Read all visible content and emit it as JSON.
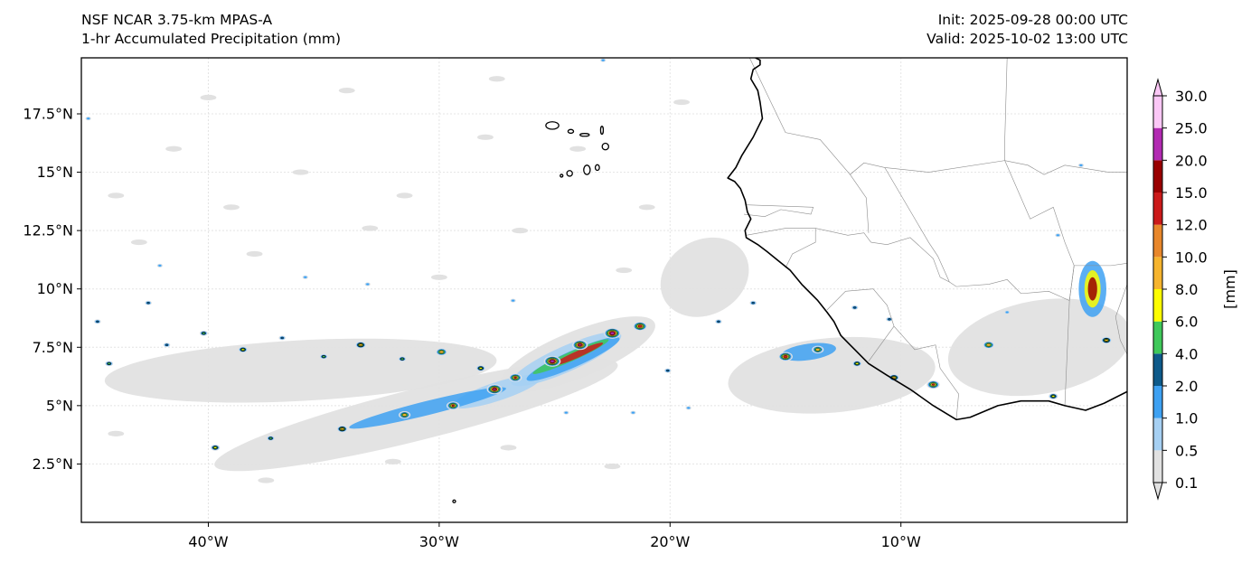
{
  "header": {
    "model": "NSF NCAR 3.75-km MPAS-A",
    "field": "1-hr Accumulated Precipitation (mm)",
    "init": "Init: 2025-09-28 00:00 UTC",
    "valid": "Valid: 2025-10-02 13:00 UTC"
  },
  "axes": {
    "lon_range": [
      -45.5,
      -0.2
    ],
    "lat_range": [
      0,
      19.9
    ],
    "lat_ticks": [
      {
        "value": 2.5,
        "label": "2.5°N"
      },
      {
        "value": 5,
        "label": "5°N"
      },
      {
        "value": 7.5,
        "label": "7.5°N"
      },
      {
        "value": 10,
        "label": "10°N"
      },
      {
        "value": 12.5,
        "label": "12.5°N"
      },
      {
        "value": 15,
        "label": "15°N"
      },
      {
        "value": 17.5,
        "label": "17.5°N"
      }
    ],
    "lon_ticks": [
      {
        "value": -40,
        "label": "40°W"
      },
      {
        "value": -30,
        "label": "30°W"
      },
      {
        "value": -20,
        "label": "20°W"
      },
      {
        "value": -10,
        "label": "10°W"
      }
    ]
  },
  "colorbar": {
    "unit_label": "[mm]",
    "levels": [
      {
        "label": "0.1",
        "color": "#e1e1e1"
      },
      {
        "label": "0.5",
        "color": "#a6d0f3"
      },
      {
        "label": "1.0",
        "color": "#3ea1f2"
      },
      {
        "label": "2.0",
        "color": "#0e5a8a"
      },
      {
        "label": "4.0",
        "color": "#3fc85a"
      },
      {
        "label": "6.0",
        "color": "#fdfd00"
      },
      {
        "label": "8.0",
        "color": "#f6b42e"
      },
      {
        "label": "10.0",
        "color": "#e8872b"
      },
      {
        "label": "12.0",
        "color": "#cb1a1a"
      },
      {
        "label": "15.0",
        "color": "#990000"
      },
      {
        "label": "20.0",
        "color": "#b22ab2"
      },
      {
        "label": "25.0",
        "color": "#fbc7f6"
      },
      {
        "label": "30.0",
        "color": ""
      }
    ]
  },
  "precip_bands": [
    {
      "lon": -24.0,
      "lat": 7.2,
      "rlon": 3.6,
      "rlat": 1.0,
      "rot": -22,
      "level": 0
    },
    {
      "lon": -36.0,
      "lat": 6.5,
      "rlon": 8.5,
      "rlat": 1.3,
      "rot": -3,
      "level": 0
    },
    {
      "lon": -31.0,
      "lat": 4.6,
      "rlon": 9.0,
      "rlat": 1.1,
      "rot": -14,
      "level": 0
    },
    {
      "lon": -13.0,
      "lat": 6.3,
      "rlon": 4.5,
      "rlat": 1.6,
      "rot": -5,
      "level": 0
    },
    {
      "lon": -18.5,
      "lat": 10.5,
      "rlon": 2.0,
      "rlat": 1.6,
      "rot": -30,
      "level": 0
    },
    {
      "lon": -4.0,
      "lat": 7.5,
      "rlon": 4.0,
      "rlat": 2.0,
      "rot": -10,
      "level": 0
    },
    {
      "lon": -24.5,
      "lat": 7.0,
      "rlon": 2.6,
      "rlat": 0.55,
      "rot": -24,
      "level": 1
    },
    {
      "lon": -27.5,
      "lat": 5.6,
      "rlon": 2.0,
      "rlat": 0.4,
      "rot": -18,
      "level": 1
    },
    {
      "lon": -24.2,
      "lat": 7.0,
      "rlon": 2.2,
      "rlat": 0.35,
      "rot": -24,
      "level": 2
    },
    {
      "lon": -30.5,
      "lat": 4.9,
      "rlon": 3.5,
      "rlat": 0.3,
      "rot": -14,
      "level": 2
    },
    {
      "lon": -14.0,
      "lat": 7.3,
      "rlon": 1.2,
      "rlat": 0.35,
      "rot": -8,
      "level": 2
    },
    {
      "lon": -1.7,
      "lat": 10.0,
      "rlon": 0.6,
      "rlat": 1.2,
      "rot": 0,
      "level": 2
    },
    {
      "lon": -24.3,
      "lat": 7.1,
      "rlon": 1.8,
      "rlat": 0.2,
      "rot": -24,
      "level": 4
    },
    {
      "lon": -24.0,
      "lat": 7.2,
      "rlon": 1.2,
      "rlat": 0.14,
      "rot": -24,
      "level": 8
    },
    {
      "lon": -1.7,
      "lat": 10.0,
      "rlon": 0.35,
      "rlat": 0.8,
      "rot": 0,
      "level": 5
    },
    {
      "lon": -1.7,
      "lat": 10.0,
      "rlon": 0.2,
      "rlat": 0.5,
      "rot": 0,
      "level": 9
    }
  ],
  "precip_cells": [
    {
      "lon": -41.8,
      "lat": 7.6,
      "level": 3
    },
    {
      "lon": -40.2,
      "lat": 8.1,
      "level": 4
    },
    {
      "lon": -38.5,
      "lat": 7.4,
      "level": 5
    },
    {
      "lon": -36.8,
      "lat": 7.9,
      "level": 3
    },
    {
      "lon": -35.0,
      "lat": 7.1,
      "level": 4
    },
    {
      "lon": -33.4,
      "lat": 7.6,
      "level": 6
    },
    {
      "lon": -31.6,
      "lat": 7.0,
      "level": 4
    },
    {
      "lon": -29.9,
      "lat": 7.3,
      "level": 7
    },
    {
      "lon": -28.2,
      "lat": 6.6,
      "level": 5
    },
    {
      "lon": -26.7,
      "lat": 6.2,
      "level": 8
    },
    {
      "lon": -25.1,
      "lat": 6.9,
      "level": 11
    },
    {
      "lon": -23.9,
      "lat": 7.6,
      "level": 10
    },
    {
      "lon": -22.5,
      "lat": 8.1,
      "level": 11
    },
    {
      "lon": -21.3,
      "lat": 8.4,
      "level": 9
    },
    {
      "lon": -39.7,
      "lat": 3.2,
      "level": 5
    },
    {
      "lon": -37.3,
      "lat": 3.6,
      "level": 4
    },
    {
      "lon": -34.2,
      "lat": 4.0,
      "level": 6
    },
    {
      "lon": -31.5,
      "lat": 4.6,
      "level": 7
    },
    {
      "lon": -29.4,
      "lat": 5.0,
      "level": 8
    },
    {
      "lon": -27.6,
      "lat": 5.7,
      "level": 10
    },
    {
      "lon": -15.0,
      "lat": 7.1,
      "level": 9
    },
    {
      "lon": -13.6,
      "lat": 7.4,
      "level": 7
    },
    {
      "lon": -11.9,
      "lat": 6.8,
      "level": 5
    },
    {
      "lon": -10.3,
      "lat": 6.2,
      "level": 6
    },
    {
      "lon": -8.6,
      "lat": 5.9,
      "level": 8
    },
    {
      "lon": -6.2,
      "lat": 7.6,
      "level": 7
    },
    {
      "lon": -3.4,
      "lat": 5.4,
      "level": 5
    },
    {
      "lon": -1.1,
      "lat": 7.8,
      "level": 6
    },
    {
      "lon": -17.9,
      "lat": 8.6,
      "level": 3
    },
    {
      "lon": -16.4,
      "lat": 9.4,
      "level": 3
    },
    {
      "lon": -44.8,
      "lat": 8.6,
      "level": 3
    },
    {
      "lon": -44.3,
      "lat": 6.8,
      "level": 4
    },
    {
      "lon": -42.6,
      "lat": 9.4,
      "level": 3
    },
    {
      "lon": -42.1,
      "lat": 11.0,
      "level": 2
    },
    {
      "lon": -35.8,
      "lat": 10.5,
      "level": 2
    },
    {
      "lon": -33.1,
      "lat": 10.2,
      "level": 2
    },
    {
      "lon": -26.8,
      "lat": 9.5,
      "level": 2
    },
    {
      "lon": -20.1,
      "lat": 6.5,
      "level": 3
    },
    {
      "lon": -2.2,
      "lat": 15.3,
      "level": 2
    },
    {
      "lon": -3.2,
      "lat": 12.3,
      "level": 2
    },
    {
      "lon": -12.0,
      "lat": 9.2,
      "level": 3
    },
    {
      "lon": -10.5,
      "lat": 8.7,
      "level": 3
    },
    {
      "lon": -5.4,
      "lat": 9.0,
      "level": 2
    },
    {
      "lon": -22.9,
      "lat": 19.8,
      "level": 2
    },
    {
      "lon": -45.2,
      "lat": 17.3,
      "level": 2
    },
    {
      "lon": -24.5,
      "lat": 4.7,
      "level": 2
    },
    {
      "lon": -21.6,
      "lat": 4.7,
      "level": 2
    },
    {
      "lon": -19.2,
      "lat": 4.9,
      "level": 2
    }
  ],
  "light_drizzle": [
    {
      "lon": -44.0,
      "lat": 14.0
    },
    {
      "lon": -41.5,
      "lat": 16.0
    },
    {
      "lon": -39.0,
      "lat": 13.5
    },
    {
      "lon": -36.0,
      "lat": 15.0
    },
    {
      "lon": -34.0,
      "lat": 18.5
    },
    {
      "lon": -31.5,
      "lat": 14.0
    },
    {
      "lon": -28.0,
      "lat": 16.5
    },
    {
      "lon": -26.5,
      "lat": 12.5
    },
    {
      "lon": -24.0,
      "lat": 16.0
    },
    {
      "lon": -21.0,
      "lat": 13.5
    },
    {
      "lon": -19.5,
      "lat": 18.0
    },
    {
      "lon": -38.0,
      "lat": 11.5
    },
    {
      "lon": -30.0,
      "lat": 10.5
    },
    {
      "lon": -22.0,
      "lat": 10.8
    },
    {
      "lon": -43.0,
      "lat": 12.0
    },
    {
      "lon": -33.0,
      "lat": 12.6
    },
    {
      "lon": -40.0,
      "lat": 18.2
    },
    {
      "lon": -27.5,
      "lat": 19.0
    },
    {
      "lon": -37.5,
      "lat": 1.8
    },
    {
      "lon": -32.0,
      "lat": 2.6
    },
    {
      "lon": -27.0,
      "lat": 3.2
    },
    {
      "lon": -22.5,
      "lat": 2.4
    },
    {
      "lon": -44.0,
      "lat": 3.8
    }
  ],
  "islands": [
    {
      "name": "Santo Antao",
      "lon": -25.1,
      "lat": 17.0,
      "rlon": 0.28,
      "rlat": 0.16
    },
    {
      "name": "Sao Vicente",
      "lon": -24.3,
      "lat": 16.75,
      "rlon": 0.12,
      "rlat": 0.08
    },
    {
      "name": "Sao Nicolau",
      "lon": -23.7,
      "lat": 16.6,
      "rlon": 0.2,
      "rlat": 0.06
    },
    {
      "name": "Sal",
      "lon": -22.95,
      "lat": 16.8,
      "rlon": 0.05,
      "rlat": 0.17
    },
    {
      "name": "Boa Vista",
      "lon": -22.8,
      "lat": 16.1,
      "rlon": 0.14,
      "rlat": 0.14
    },
    {
      "name": "Maio",
      "lon": -23.15,
      "lat": 15.2,
      "rlon": 0.09,
      "rlat": 0.12
    },
    {
      "name": "Santiago",
      "lon": -23.6,
      "lat": 15.1,
      "rlon": 0.14,
      "rlat": 0.2
    },
    {
      "name": "Fogo",
      "lon": -24.35,
      "lat": 14.95,
      "rlon": 0.12,
      "rlat": 0.12
    },
    {
      "name": "Brava",
      "lon": -24.7,
      "lat": 14.85,
      "rlon": 0.05,
      "rlat": 0.05
    },
    {
      "name": "St Peter and St Paul Rocks",
      "lon": -29.35,
      "lat": 0.9,
      "rlon": 0.05,
      "rlat": 0.05
    }
  ],
  "coastline": [
    [
      -16.3,
      19.9
    ],
    [
      -16.1,
      19.8
    ],
    [
      -16.1,
      19.6
    ],
    [
      -16.4,
      19.4
    ],
    [
      -16.5,
      19.0
    ],
    [
      -16.2,
      18.5
    ],
    [
      -16.1,
      18.0
    ],
    [
      -16.0,
      17.3
    ],
    [
      -16.4,
      16.5
    ],
    [
      -16.9,
      15.7
    ],
    [
      -17.15,
      15.2
    ],
    [
      -17.5,
      14.75
    ],
    [
      -17.2,
      14.6
    ],
    [
      -16.95,
      14.3
    ],
    [
      -16.75,
      13.8
    ],
    [
      -16.65,
      13.3
    ],
    [
      -16.5,
      13.0
    ],
    [
      -16.75,
      12.5
    ],
    [
      -16.7,
      12.2
    ],
    [
      -16.2,
      11.9
    ],
    [
      -15.8,
      11.6
    ],
    [
      -15.3,
      11.2
    ],
    [
      -14.8,
      10.8
    ],
    [
      -14.3,
      10.2
    ],
    [
      -13.6,
      9.5
    ],
    [
      -13.2,
      9.0
    ],
    [
      -12.9,
      8.6
    ],
    [
      -12.6,
      8.0
    ],
    [
      -12.0,
      7.4
    ],
    [
      -11.4,
      6.8
    ],
    [
      -10.6,
      6.3
    ],
    [
      -9.6,
      5.7
    ],
    [
      -8.6,
      5.0
    ],
    [
      -7.6,
      4.4
    ],
    [
      -7.0,
      4.5
    ],
    [
      -5.8,
      5.0
    ],
    [
      -4.8,
      5.2
    ],
    [
      -3.6,
      5.2
    ],
    [
      -2.9,
      5.0
    ],
    [
      -2.0,
      4.8
    ],
    [
      -1.2,
      5.1
    ],
    [
      -0.2,
      5.6
    ]
  ],
  "borders": [
    [
      [
        -17.0,
        21.0
      ],
      [
        -16.7,
        20.2
      ],
      [
        -15.0,
        16.7
      ],
      [
        -13.5,
        16.4
      ],
      [
        -12.2,
        14.9
      ],
      [
        -11.6,
        15.4
      ],
      [
        -10.7,
        15.2
      ],
      [
        -8.8,
        15.0
      ],
      [
        -5.5,
        15.5
      ],
      [
        -5.5,
        16.4
      ],
      [
        -5.4,
        19.9
      ]
    ],
    [
      [
        -16.7,
        13.6
      ],
      [
        -13.8,
        13.5
      ],
      [
        -13.9,
        13.2
      ],
      [
        -15.2,
        13.4
      ],
      [
        -15.9,
        13.1
      ],
      [
        -16.8,
        13.2
      ]
    ],
    [
      [
        -16.7,
        12.3
      ],
      [
        -15.0,
        12.6
      ],
      [
        -13.7,
        12.6
      ],
      [
        -12.3,
        12.3
      ],
      [
        -11.6,
        12.4
      ],
      [
        -11.3,
        12.0
      ]
    ],
    [
      [
        -15.0,
        10.9
      ],
      [
        -14.7,
        11.5
      ],
      [
        -13.7,
        12.0
      ],
      [
        -13.7,
        12.6
      ]
    ],
    [
      [
        -13.2,
        9.1
      ],
      [
        -12.4,
        9.9
      ],
      [
        -11.2,
        10.0
      ],
      [
        -10.6,
        9.3
      ],
      [
        -10.3,
        8.4
      ],
      [
        -11.4,
        6.9
      ]
    ],
    [
      [
        -10.3,
        8.4
      ],
      [
        -9.4,
        7.4
      ],
      [
        -8.5,
        7.6
      ],
      [
        -8.3,
        6.6
      ],
      [
        -7.5,
        5.5
      ],
      [
        -7.6,
        4.4
      ]
    ],
    [
      [
        -11.3,
        12.0
      ],
      [
        -10.6,
        11.9
      ],
      [
        -9.6,
        12.2
      ],
      [
        -8.6,
        11.3
      ],
      [
        -8.3,
        10.5
      ],
      [
        -7.9,
        10.3
      ],
      [
        -7.6,
        10.1
      ],
      [
        -6.2,
        10.2
      ],
      [
        -5.4,
        10.4
      ],
      [
        -4.8,
        9.8
      ],
      [
        -3.6,
        9.9
      ],
      [
        -2.7,
        9.5
      ],
      [
        -2.5,
        11.0
      ],
      [
        -0.9,
        11.0
      ],
      [
        -0.2,
        11.1
      ]
    ],
    [
      [
        -12.2,
        14.9
      ],
      [
        -11.5,
        13.9
      ],
      [
        -11.4,
        12.4
      ]
    ],
    [
      [
        -5.5,
        15.5
      ],
      [
        -4.4,
        13.0
      ],
      [
        -3.4,
        13.5
      ],
      [
        -2.9,
        12.0
      ],
      [
        -2.5,
        11.0
      ]
    ],
    [
      [
        -7.9,
        10.3
      ],
      [
        -8.4,
        11.4
      ],
      [
        -8.8,
        12.0
      ],
      [
        -10.7,
        15.2
      ]
    ],
    [
      [
        -2.5,
        11.0
      ],
      [
        -2.7,
        9.5
      ],
      [
        -2.9,
        5.0
      ]
    ],
    [
      [
        -0.2,
        11.1
      ],
      [
        -0.2,
        10.2
      ],
      [
        -0.7,
        8.8
      ],
      [
        -0.5,
        7.8
      ],
      [
        -0.2,
        7.2
      ]
    ],
    [
      [
        -5.5,
        15.5
      ],
      [
        -4.5,
        15.3
      ],
      [
        -3.8,
        14.9
      ],
      [
        -2.9,
        15.3
      ],
      [
        -1.0,
        15.0
      ],
      [
        -0.2,
        15.0
      ]
    ]
  ]
}
